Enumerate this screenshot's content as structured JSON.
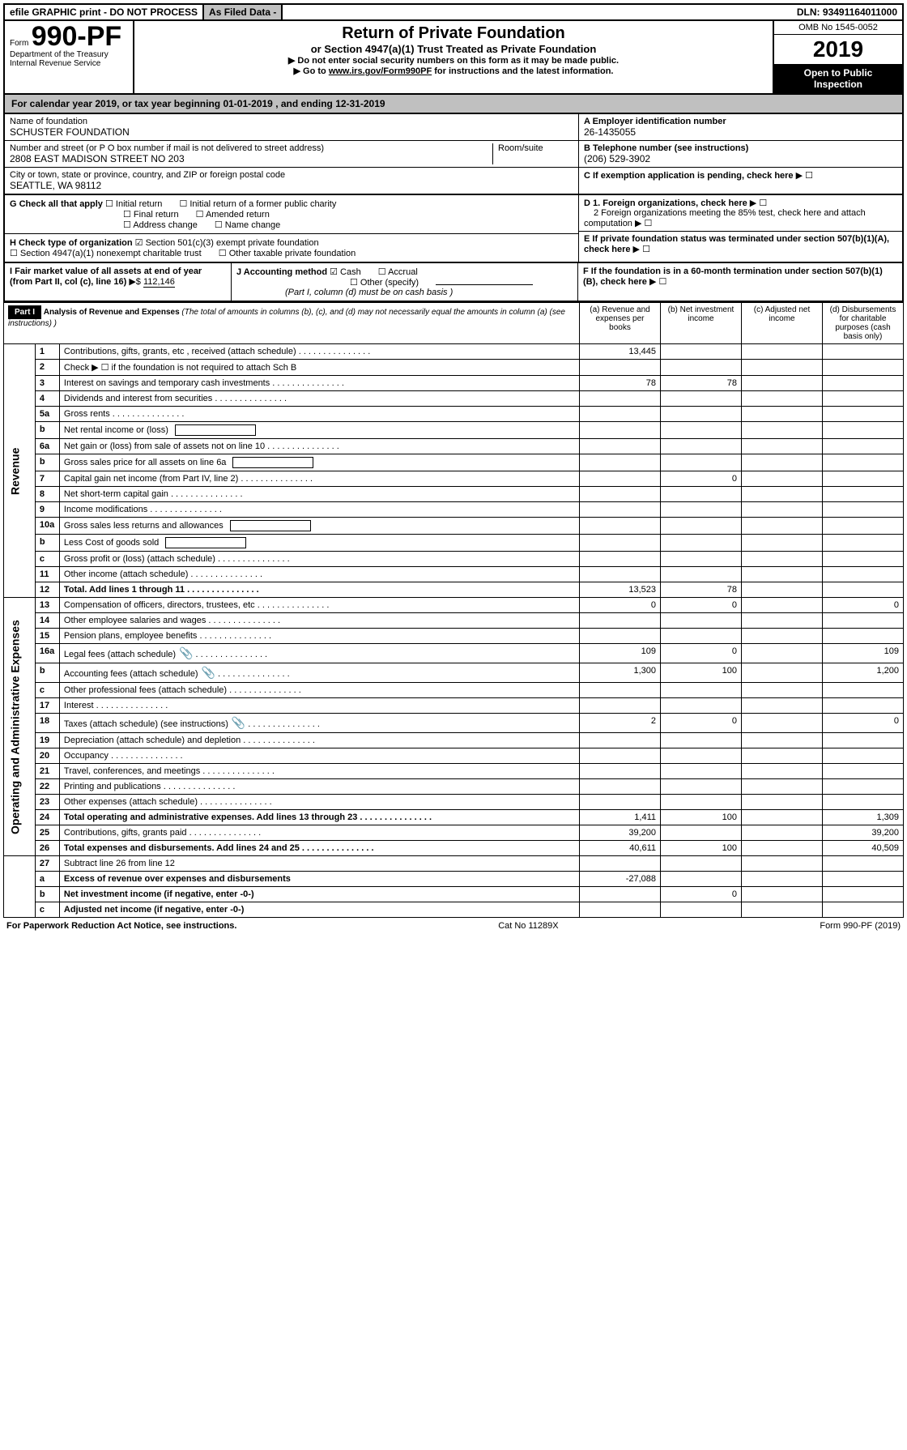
{
  "header_strip": {
    "efile": "efile GRAPHIC print - DO NOT PROCESS",
    "asfiled": "As Filed Data -",
    "dln_label": "DLN:",
    "dln": "93491164011000"
  },
  "form_id": {
    "form_word": "Form",
    "number": "990-PF",
    "dept": "Department of the Treasury",
    "irs": "Internal Revenue Service"
  },
  "title": {
    "t1": "Return of Private Foundation",
    "t2": "or Section 4947(a)(1) Trust Treated as Private Foundation",
    "t3": "▶ Do not enter social security numbers on this form as it may be made public.",
    "t4a": "▶ Go to ",
    "t4link": "www.irs.gov/Form990PF",
    "t4b": " for instructions and the latest information."
  },
  "right": {
    "omb": "OMB No 1545-0052",
    "year": "2019",
    "otp1": "Open to Public",
    "otp2": "Inspection"
  },
  "cal_year": {
    "prefix": "For calendar year 2019, or tax year beginning ",
    "begin": "01-01-2019",
    "mid": " , and ending ",
    "end": "12-31-2019"
  },
  "foundation": {
    "name_label": "Name of foundation",
    "name": "SCHUSTER FOUNDATION",
    "addr_label": "Number and street (or P O  box number if mail is not delivered to street address)",
    "addr": "2808 EAST MADISON STREET NO 203",
    "room_label": "Room/suite",
    "city_label": "City or town, state or province, country, and ZIP or foreign postal code",
    "city": "SEATTLE, WA  98112"
  },
  "rightcol": {
    "a_label": "A Employer identification number",
    "a_val": "26-1435055",
    "b_label": "B Telephone number (see instructions)",
    "b_val": "(206) 529-3902",
    "c_label": "C If exemption application is pending, check here",
    "d1": "D 1. Foreign organizations, check here",
    "d2": "2 Foreign organizations meeting the 85% test, check here and attach computation",
    "e": "E  If private foundation status was terminated under section 507(b)(1)(A), check here",
    "f": "F  If the foundation is in a 60-month termination under section 507(b)(1)(B), check here"
  },
  "g": {
    "label": "G Check all that apply",
    "opts": [
      "Initial return",
      "Initial return of a former public charity",
      "Final return",
      "Amended return",
      "Address change",
      "Name change"
    ]
  },
  "h": {
    "label": "H Check type of organization",
    "opt1": "Section 501(c)(3) exempt private foundation",
    "opt2": "Section 4947(a)(1) nonexempt charitable trust",
    "opt3": "Other taxable private foundation"
  },
  "i": {
    "label": "I Fair market value of all assets at end of year (from Part II, col  (c), line 16)",
    "arrow": "▶$",
    "val": "112,146"
  },
  "j": {
    "label": "J Accounting method",
    "cash": "Cash",
    "accrual": "Accrual",
    "other": "Other (specify)",
    "note": "(Part I, column (d) must be on cash basis )"
  },
  "part1": {
    "badge": "Part I",
    "title": "Analysis of Revenue and Expenses",
    "title_note": " (The total of amounts in columns (b), (c), and (d) may not necessarily equal the amounts in column (a) (see instructions) )",
    "col_a": "(a) Revenue and expenses per books",
    "col_b": "(b) Net investment income",
    "col_c": "(c) Adjusted net income",
    "col_d": "(d) Disbursements for charitable purposes (cash basis only)",
    "revenue_label": "Revenue",
    "expenses_label": "Operating and Administrative Expenses",
    "rows": [
      {
        "n": "1",
        "d": "Contributions, gifts, grants, etc , received (attach schedule)",
        "a": "13,445",
        "b": "",
        "c": "",
        "dd": ""
      },
      {
        "n": "2",
        "d": "Check ▶ ☐ if the foundation is not required to attach Sch B",
        "a": "",
        "b": "",
        "c": "",
        "dd": "",
        "nodots": true
      },
      {
        "n": "3",
        "d": "Interest on savings and temporary cash investments",
        "a": "78",
        "b": "78",
        "c": "",
        "dd": ""
      },
      {
        "n": "4",
        "d": "Dividends and interest from securities",
        "a": "",
        "b": "",
        "c": "",
        "dd": ""
      },
      {
        "n": "5a",
        "d": "Gross rents",
        "a": "",
        "b": "",
        "c": "",
        "dd": ""
      },
      {
        "n": "b",
        "d": "Net rental income or (loss)",
        "a": "",
        "b": "",
        "c": "",
        "dd": "",
        "inlinebox": true
      },
      {
        "n": "6a",
        "d": "Net gain or (loss) from sale of assets not on line 10",
        "a": "",
        "b": "",
        "c": "",
        "dd": ""
      },
      {
        "n": "b",
        "d": "Gross sales price for all assets on line 6a",
        "a": "",
        "b": "",
        "c": "",
        "dd": "",
        "inlinebox": true
      },
      {
        "n": "7",
        "d": "Capital gain net income (from Part IV, line 2)",
        "a": "",
        "b": "0",
        "c": "",
        "dd": ""
      },
      {
        "n": "8",
        "d": "Net short-term capital gain",
        "a": "",
        "b": "",
        "c": "",
        "dd": ""
      },
      {
        "n": "9",
        "d": "Income modifications",
        "a": "",
        "b": "",
        "c": "",
        "dd": ""
      },
      {
        "n": "10a",
        "d": "Gross sales less returns and allowances",
        "a": "",
        "b": "",
        "c": "",
        "dd": "",
        "inlinebox": true
      },
      {
        "n": "b",
        "d": "Less  Cost of goods sold",
        "a": "",
        "b": "",
        "c": "",
        "dd": "",
        "inlinebox": true
      },
      {
        "n": "c",
        "d": "Gross profit or (loss) (attach schedule)",
        "a": "",
        "b": "",
        "c": "",
        "dd": ""
      },
      {
        "n": "11",
        "d": "Other income (attach schedule)",
        "a": "",
        "b": "",
        "c": "",
        "dd": ""
      },
      {
        "n": "12",
        "d": "Total. Add lines 1 through 11",
        "a": "13,523",
        "b": "78",
        "c": "",
        "dd": "",
        "bold": true
      }
    ],
    "exp_rows": [
      {
        "n": "13",
        "d": "Compensation of officers, directors, trustees, etc",
        "a": "0",
        "b": "0",
        "c": "",
        "dd": "0"
      },
      {
        "n": "14",
        "d": "Other employee salaries and wages",
        "a": "",
        "b": "",
        "c": "",
        "dd": ""
      },
      {
        "n": "15",
        "d": "Pension plans, employee benefits",
        "a": "",
        "b": "",
        "c": "",
        "dd": ""
      },
      {
        "n": "16a",
        "d": "Legal fees (attach schedule)",
        "a": "109",
        "b": "0",
        "c": "",
        "dd": "109",
        "icon": true
      },
      {
        "n": "b",
        "d": "Accounting fees (attach schedule)",
        "a": "1,300",
        "b": "100",
        "c": "",
        "dd": "1,200",
        "icon": true
      },
      {
        "n": "c",
        "d": "Other professional fees (attach schedule)",
        "a": "",
        "b": "",
        "c": "",
        "dd": ""
      },
      {
        "n": "17",
        "d": "Interest",
        "a": "",
        "b": "",
        "c": "",
        "dd": ""
      },
      {
        "n": "18",
        "d": "Taxes (attach schedule) (see instructions)",
        "a": "2",
        "b": "0",
        "c": "",
        "dd": "0",
        "icon": true
      },
      {
        "n": "19",
        "d": "Depreciation (attach schedule) and depletion",
        "a": "",
        "b": "",
        "c": "",
        "dd": ""
      },
      {
        "n": "20",
        "d": "Occupancy",
        "a": "",
        "b": "",
        "c": "",
        "dd": ""
      },
      {
        "n": "21",
        "d": "Travel, conferences, and meetings",
        "a": "",
        "b": "",
        "c": "",
        "dd": ""
      },
      {
        "n": "22",
        "d": "Printing and publications",
        "a": "",
        "b": "",
        "c": "",
        "dd": ""
      },
      {
        "n": "23",
        "d": "Other expenses (attach schedule)",
        "a": "",
        "b": "",
        "c": "",
        "dd": ""
      },
      {
        "n": "24",
        "d": "Total operating and administrative expenses. Add lines 13 through 23",
        "a": "1,411",
        "b": "100",
        "c": "",
        "dd": "1,309",
        "bold": true
      },
      {
        "n": "25",
        "d": "Contributions, gifts, grants paid",
        "a": "39,200",
        "b": "",
        "c": "",
        "dd": "39,200"
      },
      {
        "n": "26",
        "d": "Total expenses and disbursements. Add lines 24 and 25",
        "a": "40,611",
        "b": "100",
        "c": "",
        "dd": "40,509",
        "bold": true
      }
    ],
    "tail_rows": [
      {
        "n": "27",
        "d": "Subtract line 26 from line 12",
        "a": "",
        "b": "",
        "c": "",
        "dd": ""
      },
      {
        "n": "a",
        "d": "Excess of revenue over expenses and disbursements",
        "a": "-27,088",
        "b": "",
        "c": "",
        "dd": "",
        "bold": true
      },
      {
        "n": "b",
        "d": "Net investment income (if negative, enter -0-)",
        "a": "",
        "b": "0",
        "c": "",
        "dd": "",
        "bold": true
      },
      {
        "n": "c",
        "d": "Adjusted net income (if negative, enter -0-)",
        "a": "",
        "b": "",
        "c": "",
        "dd": "",
        "bold": true
      }
    ]
  },
  "footer": {
    "left": "For Paperwork Reduction Act Notice, see instructions.",
    "mid": "Cat No  11289X",
    "right": "Form 990-PF (2019)"
  },
  "colors": {
    "grey": "#c0c0c0",
    "black": "#000000",
    "white": "#ffffff"
  }
}
